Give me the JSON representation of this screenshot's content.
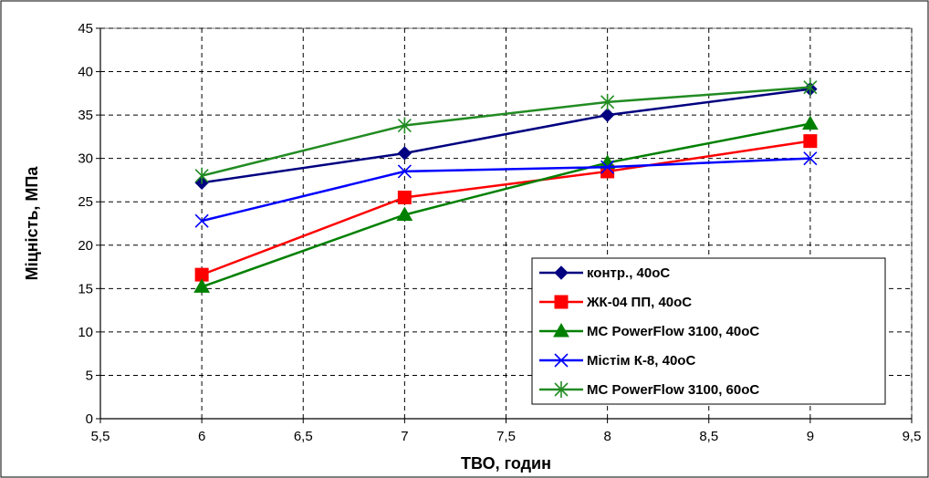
{
  "chart_data": {
    "type": "line",
    "title": "",
    "xlabel": "ТВО, годин",
    "ylabel": "Міцність, МПа",
    "xlim": [
      5.5,
      9.5
    ],
    "ylim": [
      0,
      45
    ],
    "x_ticks": [
      "5,5",
      "6",
      "6,5",
      "7",
      "7,5",
      "8",
      "8,5",
      "9",
      "9,5"
    ],
    "y_ticks": [
      "0",
      "5",
      "10",
      "15",
      "20",
      "25",
      "30",
      "35",
      "40",
      "45"
    ],
    "grid": true,
    "legend_position": "bottom-right",
    "x": [
      6,
      7,
      8,
      9
    ],
    "series": [
      {
        "name": "контр., 40оС",
        "color": "#000080",
        "marker": "diamond",
        "values": [
          27.2,
          30.6,
          35.0,
          38.0
        ]
      },
      {
        "name": "ЖК-04 ПП, 40оС",
        "color": "#ff0000",
        "marker": "square",
        "values": [
          16.6,
          25.5,
          28.5,
          32.0
        ]
      },
      {
        "name": "МС PowerFlow 3100,  40oC",
        "color": "#008000",
        "marker": "triangle",
        "values": [
          15.2,
          23.5,
          29.5,
          34.0
        ]
      },
      {
        "name": "Містім К-8, 40оС",
        "color": "#0000ff",
        "marker": "x",
        "values": [
          22.8,
          28.5,
          29.0,
          30.0
        ]
      },
      {
        "name": "МС PowerFlow 3100, 60oC",
        "color": "#228b22",
        "marker": "asterisk",
        "values": [
          28.0,
          33.8,
          36.5,
          38.2
        ]
      }
    ]
  }
}
